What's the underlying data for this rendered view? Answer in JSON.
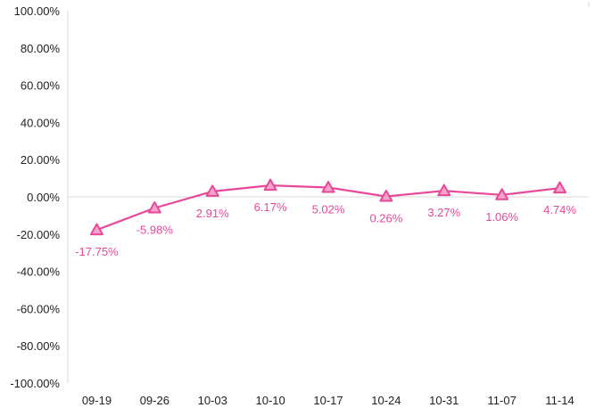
{
  "chart_data": {
    "type": "line",
    "title": "",
    "xlabel": "",
    "ylabel": "",
    "categories": [
      "09-19",
      "09-26",
      "10-03",
      "10-10",
      "10-17",
      "10-24",
      "10-31",
      "11-07",
      "11-14"
    ],
    "series": [
      {
        "values": [
          -17.75,
          -5.98,
          2.91,
          6.17,
          5.02,
          0.26,
          3.27,
          1.06,
          4.74
        ],
        "labels": [
          "-17.75%",
          "-5.98%",
          "2.91%",
          "6.17%",
          "5.02%",
          "0.26%",
          "3.27%",
          "1.06%",
          "4.74%"
        ],
        "marker": "triangle",
        "color": "#e8489a"
      }
    ],
    "ylim": [
      -100,
      100
    ],
    "yticks": [
      100,
      80,
      60,
      40,
      20,
      0,
      -20,
      -40,
      -60,
      -80,
      -100
    ],
    "ytick_labels": [
      "100.00%",
      "80.00%",
      "60.00%",
      "40.00%",
      "20.00%",
      "0.00%",
      "-20.00%",
      "-40.00%",
      "-60.00%",
      "-80.00%",
      "-100.00%"
    ],
    "grid": false,
    "legend": "none",
    "colors": {
      "line": "#e8489a",
      "marker_fill": "#f4a3c9",
      "axis": "#d9d9d9",
      "label": "#e8489a",
      "tick_text": "#222222"
    }
  }
}
